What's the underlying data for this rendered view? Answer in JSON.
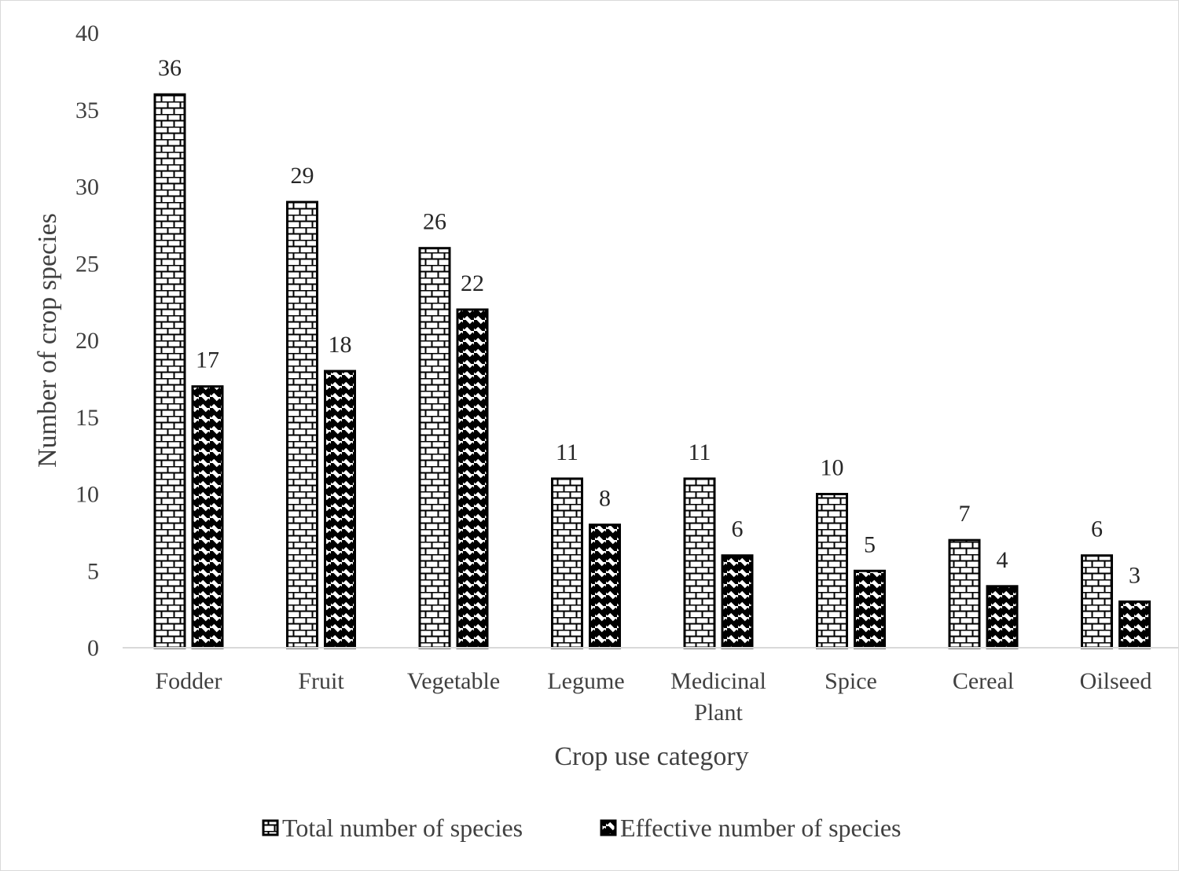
{
  "chart_data": {
    "type": "bar",
    "xlabel": "Crop use category",
    "ylabel": "Number of crop species",
    "ylim": [
      0,
      40
    ],
    "ytick_step": 5,
    "grid": false,
    "legend_position": "bottom",
    "categories": [
      [
        "Fodder"
      ],
      [
        "Fruit"
      ],
      [
        "Vegetable"
      ],
      [
        "Legume"
      ],
      [
        "Medicinal",
        "Plant"
      ],
      [
        "Spice"
      ],
      [
        "Cereal"
      ],
      [
        "Oilseed"
      ]
    ],
    "series": [
      {
        "name": "Total number of species",
        "pattern": "brick",
        "values": [
          36,
          29,
          26,
          11,
          11,
          10,
          7,
          6
        ]
      },
      {
        "name": "Effective number of species",
        "pattern": "diagonal-stripes",
        "values": [
          17,
          18,
          22,
          8,
          6,
          5,
          4,
          3
        ]
      }
    ],
    "colors": {
      "bar_outline": "#000000",
      "bar_fill": "#ffffff",
      "axis_line": "#d9d9d9",
      "text": "#404040"
    }
  }
}
